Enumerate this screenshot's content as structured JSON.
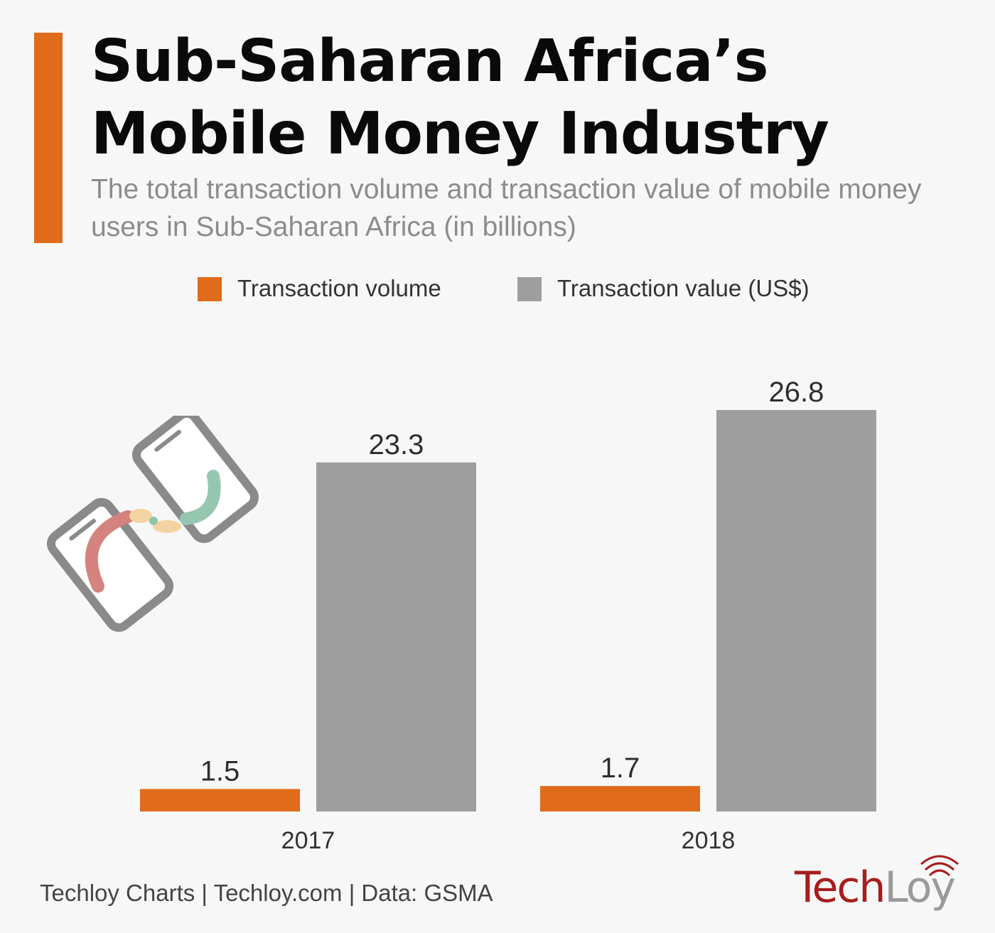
{
  "header": {
    "title_line1": "Sub-Saharan Africa’s",
    "title_line2": "Mobile Money Industry",
    "subtitle": "The total transaction volume and transaction value of mobile money users in Sub-Saharan Africa (in billions)"
  },
  "colors": {
    "accent": "#e06b1b",
    "volume": "#e06b1b",
    "value": "#9e9e9e"
  },
  "chart_data": {
    "type": "bar",
    "title": "Sub-Saharan Africa’s Mobile Money Industry",
    "categories": [
      "2017",
      "2018"
    ],
    "series": [
      {
        "name": "Transaction volume",
        "values": [
          1.5,
          1.7
        ]
      },
      {
        "name": "Transaction value (US$)",
        "values": [
          23.3,
          26.8
        ]
      }
    ],
    "data_labels": [
      [
        "1.5",
        "1.7"
      ],
      [
        "23.3",
        "26.8"
      ]
    ],
    "xlabel": "",
    "ylabel": "",
    "ylim": [
      0,
      30
    ],
    "grid": false,
    "legend_position": "top-center"
  },
  "footer": {
    "source": "Techloy Charts | Techloy.com | Data: GSMA",
    "logo_part1": "Tech",
    "logo_part2": "Loy"
  },
  "illustration": {
    "icon": "mobile-money-transfer-icon"
  }
}
